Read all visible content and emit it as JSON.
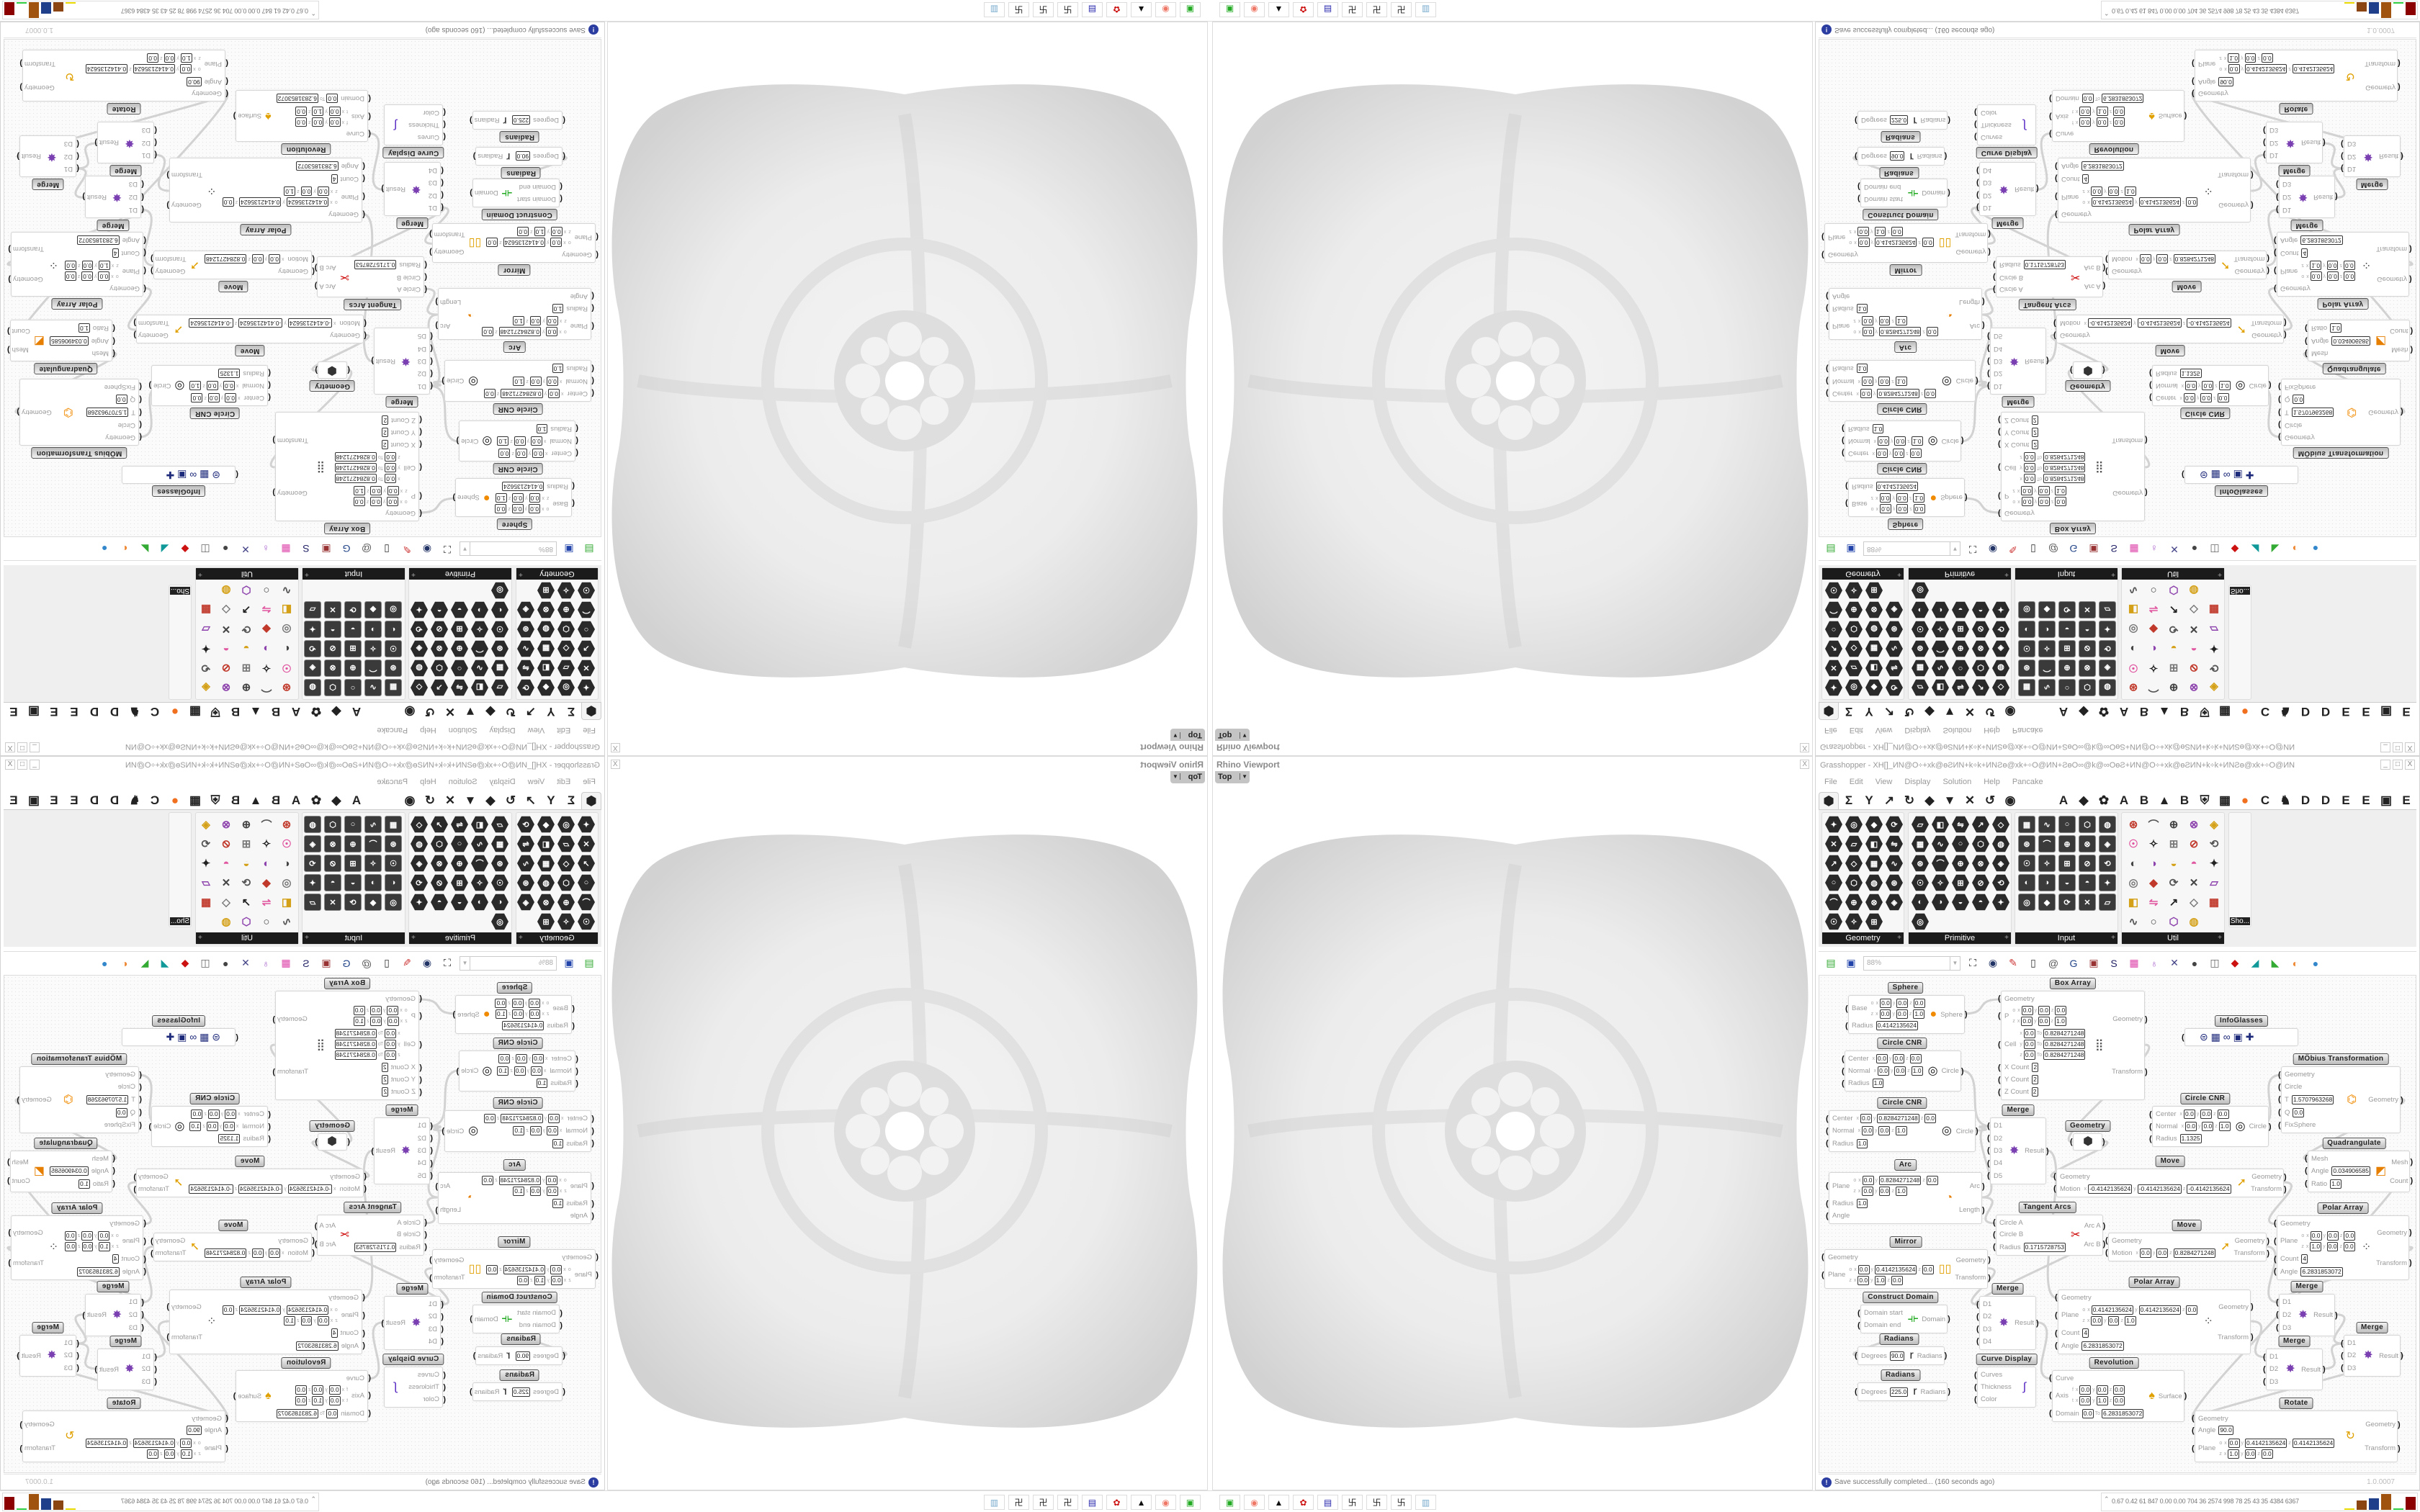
{
  "viewport": {
    "title": "Rhino Viewport",
    "view": "Top",
    "close": "X"
  },
  "window": {
    "title": "Grasshopper - XH[]_ИN@O÷+xk@ɵƧИN+k÷k+ИNƧɵ@xk+÷O@ИN+ƧɵO∞@k@∞OɵƧ+ИN@O÷+xk@ɵƧИN+k÷k+ИNƧɵ@xk+÷O@ИN",
    "buttons": [
      "_",
      "□",
      "X"
    ]
  },
  "menu": [
    "File",
    "Edit",
    "View",
    "Display",
    "Solution",
    "Help",
    "Pancake"
  ],
  "tabs": {
    "left": [
      "⬢",
      "Σ",
      "Y",
      "↗",
      "↻",
      "◆",
      "▼",
      "✕",
      "↺",
      "◉"
    ],
    "right": [
      "A",
      "◆",
      "✿",
      "A",
      "B",
      "▲",
      "B",
      "⛨",
      "▦",
      "●",
      "C",
      "♞",
      "D",
      "D",
      "E",
      "E",
      "▣",
      "E"
    ],
    "active_index": 0
  },
  "ribbon": {
    "panels": [
      {
        "label": "Geometry",
        "style": "hex",
        "count": 23
      },
      {
        "label": "Primitive",
        "style": "hex",
        "count": 26
      },
      {
        "label": "Input",
        "style": "sq",
        "count": 25
      },
      {
        "label": "Util",
        "style": "ut",
        "count": 29
      }
    ],
    "extra_label": "Sho..."
  },
  "toolbar": {
    "zoom": "88%",
    "icons": [
      "new-file-icon",
      "save-icon",
      "zoom-extents-icon",
      "preview-eye-icon",
      "sketch-icon",
      "cluster-icon",
      "at-icon",
      "gha-icon",
      "canvas-icon",
      "search-icon",
      "package-icon",
      "bulb-icon",
      "wires-icon",
      "mesh-preview-icon",
      "wireframe-icon",
      "shaded-icon",
      "selection-icon",
      "green-shade-icon",
      "orange-sphere-icon",
      "blue-sphere-icon"
    ]
  },
  "canvas": {
    "components": [
      {
        "title": "Sphere",
        "icon": "sphere",
        "inputs": [
          {
            "label": "Base",
            "rows": [
              [
                "o",
                "x",
                "0.0",
                "y",
                "0.0",
                "z",
                "0.0"
              ],
              [
                "z",
                "x",
                "0.0",
                "y",
                "0.0",
                "z",
                "1.0"
              ]
            ]
          },
          {
            "label": "Radius",
            "rows": [
              [
                "0.4142135624"
              ]
            ]
          }
        ],
        "outputs": [
          "Sphere"
        ]
      },
      {
        "title": "Box Array",
        "icon": "box-array",
        "inputs": [
          {
            "label": "Geometry",
            "rows": []
          },
          {
            "label": "P",
            "rows": [
              [
                "o",
                "x",
                "0.0",
                "y",
                "0.0",
                "z",
                "0.0"
              ],
              [
                "z",
                "x",
                "0.0",
                "y",
                "0.0",
                "z",
                "1.0"
              ]
            ]
          },
          {
            "label": "Cell",
            "rows": [
              [
                "x",
                "0.0",
                "To",
                "0.8284271248"
              ],
              [
                "y",
                "0.0",
                "To",
                "0.8284271248"
              ],
              [
                "z",
                "0.0",
                "To",
                "0.8284271248"
              ]
            ]
          },
          {
            "label": "X Count",
            "rows": [
              [
                "2"
              ]
            ]
          },
          {
            "label": "Y Count",
            "rows": [
              [
                "2"
              ]
            ]
          },
          {
            "label": "Z Count",
            "rows": [
              [
                "2"
              ]
            ]
          }
        ],
        "outputs": [
          "Geometry",
          "Transform"
        ]
      },
      {
        "title": "Circle CNR",
        "icon": "circle",
        "inputs": [
          {
            "label": "Center",
            "rows": [
              [
                "x",
                "0.0",
                "y",
                "0.0",
                "z",
                "0.0"
              ]
            ]
          },
          {
            "label": "Normal",
            "rows": [
              [
                "x",
                "0.0",
                "y",
                "0.0",
                "z",
                "1.0"
              ]
            ]
          },
          {
            "label": "Radius",
            "rows": [
              [
                "1.0"
              ]
            ]
          }
        ],
        "outputs": [
          "Circle"
        ]
      },
      {
        "title": "Circle CNR",
        "icon": "circle",
        "inputs": [
          {
            "label": "Center",
            "rows": [
              [
                "x",
                "0.0",
                "y",
                "0.8284271248",
                "z",
                "0.0"
              ]
            ]
          },
          {
            "label": "Normal",
            "rows": [
              [
                "x",
                "0.0",
                "y",
                "0.0",
                "z",
                "1.0"
              ]
            ]
          },
          {
            "label": "Radius",
            "rows": [
              [
                "1.0"
              ]
            ]
          }
        ],
        "outputs": [
          "Circle"
        ]
      },
      {
        "title": "Arc",
        "icon": "arc",
        "inputs": [
          {
            "label": "Plane",
            "rows": [
              [
                "o",
                "x",
                "0.0",
                "y",
                "0.8284271248",
                "z",
                "0.0"
              ],
              [
                "z",
                "x",
                "0.0",
                "y",
                "0.0",
                "z",
                "1.0"
              ]
            ]
          },
          {
            "label": "Radius",
            "rows": [
              [
                "1.0"
              ]
            ]
          },
          {
            "label": "Angle",
            "rows": []
          }
        ],
        "outputs": [
          "Arc",
          "Length"
        ]
      },
      {
        "title": "Merge",
        "icon": "merge",
        "inputs": [
          {
            "label": "D1",
            "rows": []
          },
          {
            "label": "D2",
            "rows": []
          },
          {
            "label": "D3",
            "rows": []
          },
          {
            "label": "D4",
            "rows": []
          },
          {
            "label": "D5",
            "rows": []
          }
        ],
        "outputs": [
          "Result"
        ]
      },
      {
        "title": "Geometry",
        "icon": "geometry",
        "inputs": [
          {
            "label": "",
            "rows": []
          }
        ],
        "outputs": [
          ""
        ]
      },
      {
        "title": "Move",
        "icon": "move",
        "inputs": [
          {
            "label": "Geometry",
            "rows": []
          },
          {
            "label": "Motion",
            "rows": [
              [
                "x",
                "-0.4142135624",
                "y",
                "-0.4142135624",
                "z",
                "-0.4142135624"
              ]
            ]
          }
        ],
        "outputs": [
          "Geometry",
          "Transform"
        ]
      },
      {
        "title": "InfoGlasses",
        "icon": "infoglasses",
        "inputs": [
          {
            "label": "",
            "rows": []
          }
        ],
        "outputs": []
      },
      {
        "title": "MÖbius Transformation",
        "icon": "mobius",
        "inputs": [
          {
            "label": "Geometry",
            "rows": []
          },
          {
            "label": "Circle",
            "rows": []
          },
          {
            "label": "T",
            "rows": [
              [
                "1.5707963268"
              ]
            ]
          },
          {
            "label": "Q",
            "rows": [
              [
                "0.0"
              ]
            ]
          },
          {
            "label": "FixSphere",
            "rows": []
          }
        ],
        "outputs": [
          "Geometry"
        ]
      },
      {
        "title": "Circle CNR",
        "icon": "circle",
        "inputs": [
          {
            "label": "Center",
            "rows": [
              [
                "x",
                "0.0",
                "y",
                "0.0",
                "z",
                "0.0"
              ]
            ]
          },
          {
            "label": "Normal",
            "rows": [
              [
                "x",
                "0.0",
                "y",
                "0.0",
                "z",
                "1.0"
              ]
            ]
          },
          {
            "label": "Radius",
            "rows": [
              [
                "1.1325"
              ]
            ]
          }
        ],
        "outputs": [
          "Circle"
        ]
      },
      {
        "title": "Quadrangulate",
        "icon": "quadrangulate",
        "inputs": [
          {
            "label": "Mesh",
            "rows": []
          },
          {
            "label": "Angle",
            "rows": [
              [
                "0.034906585"
              ]
            ]
          },
          {
            "label": "Ratio",
            "rows": [
              [
                "1.0"
              ]
            ]
          }
        ],
        "outputs": [
          "Mesh",
          "Count"
        ]
      },
      {
        "title": "Mirror",
        "icon": "mirror",
        "inputs": [
          {
            "label": "Geometry",
            "rows": []
          },
          {
            "label": "Plane",
            "rows": [
              [
                "o",
                "x",
                "0.0",
                "y",
                "0.4142135624",
                "z",
                "0.0"
              ],
              [
                "z",
                "x",
                "0.0",
                "y",
                "1.0",
                "z",
                "0.0"
              ]
            ]
          }
        ],
        "outputs": [
          "Geometry",
          "Transform"
        ]
      },
      {
        "title": "Tangent Arcs",
        "icon": "tangent-arcs",
        "inputs": [
          {
            "label": "Circle A",
            "rows": []
          },
          {
            "label": "Circle B",
            "rows": []
          },
          {
            "label": "Radius",
            "rows": [
              [
                "0.1715728753"
              ]
            ]
          }
        ],
        "outputs": [
          "Arc A",
          "Arc B"
        ]
      },
      {
        "title": "Construct Domain",
        "icon": "domain",
        "inputs": [
          {
            "label": "Domain start",
            "rows": []
          },
          {
            "label": "Domain end",
            "rows": []
          }
        ],
        "outputs": [
          "Domain"
        ]
      },
      {
        "title": "Radians",
        "icon": "radians",
        "inputs": [
          {
            "label": "Degrees",
            "rows": [
              [
                "90.0"
              ]
            ]
          }
        ],
        "outputs": [
          "Radians"
        ]
      },
      {
        "title": "Radians",
        "icon": "radians",
        "inputs": [
          {
            "label": "Degrees",
            "rows": [
              [
                "225.0"
              ]
            ]
          }
        ],
        "outputs": [
          "Radians"
        ]
      },
      {
        "title": "Merge",
        "icon": "merge",
        "inputs": [
          {
            "label": "D1",
            "rows": []
          },
          {
            "label": "D2",
            "rows": []
          },
          {
            "label": "D3",
            "rows": []
          },
          {
            "label": "D4",
            "rows": []
          }
        ],
        "outputs": [
          "Result"
        ]
      },
      {
        "title": "Curve Display",
        "icon": "curve-display",
        "inputs": [
          {
            "label": "Curves",
            "rows": []
          },
          {
            "label": "Thickness",
            "rows": []
          },
          {
            "label": "Color",
            "rows": []
          }
        ],
        "outputs": []
      },
      {
        "title": "Revolution",
        "icon": "revolution",
        "inputs": [
          {
            "label": "Curve",
            "rows": []
          },
          {
            "label": "Axis",
            "rows": [
              [
                "f",
                "x",
                "0.0",
                "y",
                "0.0",
                "z",
                "0.0"
              ],
              [
                "t",
                "x",
                "0.0",
                "y",
                "1.0",
                "z",
                "0.0"
              ]
            ]
          },
          {
            "label": "Domain",
            "rows": [
              [
                "0.0",
                "To",
                "6.2831853072"
              ]
            ]
          }
        ],
        "outputs": [
          "Surface"
        ]
      },
      {
        "title": "Polar Array",
        "icon": "polar-array",
        "inputs": [
          {
            "label": "Geometry",
            "rows": []
          },
          {
            "label": "Plane",
            "rows": [
              [
                "o",
                "x",
                "0.4142135624",
                "y",
                "0.4142135624",
                "z",
                "0.0"
              ],
              [
                "z",
                "x",
                "0.0",
                "y",
                "0.0",
                "z",
                "1.0"
              ]
            ]
          },
          {
            "label": "Count",
            "rows": [
              [
                "4"
              ]
            ]
          },
          {
            "label": "Angle",
            "rows": [
              [
                "6.2831853072"
              ]
            ]
          }
        ],
        "outputs": [
          "Geometry",
          "Transform"
        ]
      },
      {
        "title": "Move",
        "icon": "move",
        "inputs": [
          {
            "label": "Geometry",
            "rows": []
          },
          {
            "label": "Motion",
            "rows": [
              [
                "x",
                "0.0",
                "y",
                "0.0",
                "z",
                "0.8284271248"
              ]
            ]
          }
        ],
        "outputs": [
          "Geometry",
          "Transform"
        ]
      },
      {
        "title": "Polar Array",
        "icon": "polar-array",
        "inputs": [
          {
            "label": "Geometry",
            "rows": []
          },
          {
            "label": "Plane",
            "rows": [
              [
                "o",
                "x",
                "0.0",
                "y",
                "0.0",
                "z",
                "0.0"
              ],
              [
                "z",
                "x",
                "1.0",
                "y",
                "0.0",
                "z",
                "0.0"
              ]
            ]
          },
          {
            "label": "Count",
            "rows": [
              [
                "4"
              ]
            ]
          },
          {
            "label": "Angle",
            "rows": [
              [
                "6.2831853072"
              ]
            ]
          }
        ],
        "outputs": [
          "Geometry",
          "Transform"
        ]
      },
      {
        "title": "Merge",
        "icon": "merge",
        "inputs": [
          {
            "label": "D1",
            "rows": []
          },
          {
            "label": "D2",
            "rows": []
          },
          {
            "label": "D3",
            "rows": []
          }
        ],
        "outputs": [
          "Result"
        ]
      },
      {
        "title": "Merge",
        "icon": "merge",
        "inputs": [
          {
            "label": "D1",
            "rows": []
          },
          {
            "label": "D2",
            "rows": []
          },
          {
            "label": "D3",
            "rows": []
          }
        ],
        "outputs": [
          "Result"
        ]
      },
      {
        "title": "Merge",
        "icon": "merge",
        "inputs": [
          {
            "label": "D1",
            "rows": []
          },
          {
            "label": "D2",
            "rows": []
          },
          {
            "label": "D3",
            "rows": []
          }
        ],
        "outputs": [
          "Result"
        ]
      },
      {
        "title": "Rotate",
        "icon": "rotate",
        "inputs": [
          {
            "label": "Geometry",
            "rows": []
          },
          {
            "label": "Angle",
            "rows": [
              [
                "90.0"
              ]
            ]
          },
          {
            "label": "Plane",
            "rows": [
              [
                "o",
                "x",
                "0.0",
                "y",
                "0.4142135624",
                "z",
                "0.4142135624"
              ],
              [
                "z",
                "x",
                "1.0",
                "y",
                "0.0",
                "z",
                "0.0"
              ]
            ]
          }
        ],
        "outputs": [
          "Geometry",
          "Transform"
        ]
      }
    ]
  },
  "status": {
    "message": "Save successfully completed... (160 seconds ago)",
    "version": "1.0.0007"
  },
  "taskbar": {
    "icons": [
      "terminal-icon",
      "firefox-icon",
      "inkscape-icon",
      "red-app-icon",
      "floppy-64-icon",
      "window-icon",
      "window-icon",
      "window-icon",
      "calculator-icon"
    ],
    "stats": "0.67 0.42 61 847 0.00 0.00 704 36 2574 998 78 25 43 35 4384 6367",
    "bar_colors": [
      "#e8d800",
      "#8b4513",
      "#1f3f8a",
      "#a0520f",
      "#2ecc40",
      "#8b0000"
    ],
    "bar_levels": [
      0.05,
      0.6,
      0.75,
      1.0,
      0.05,
      0.8
    ]
  }
}
